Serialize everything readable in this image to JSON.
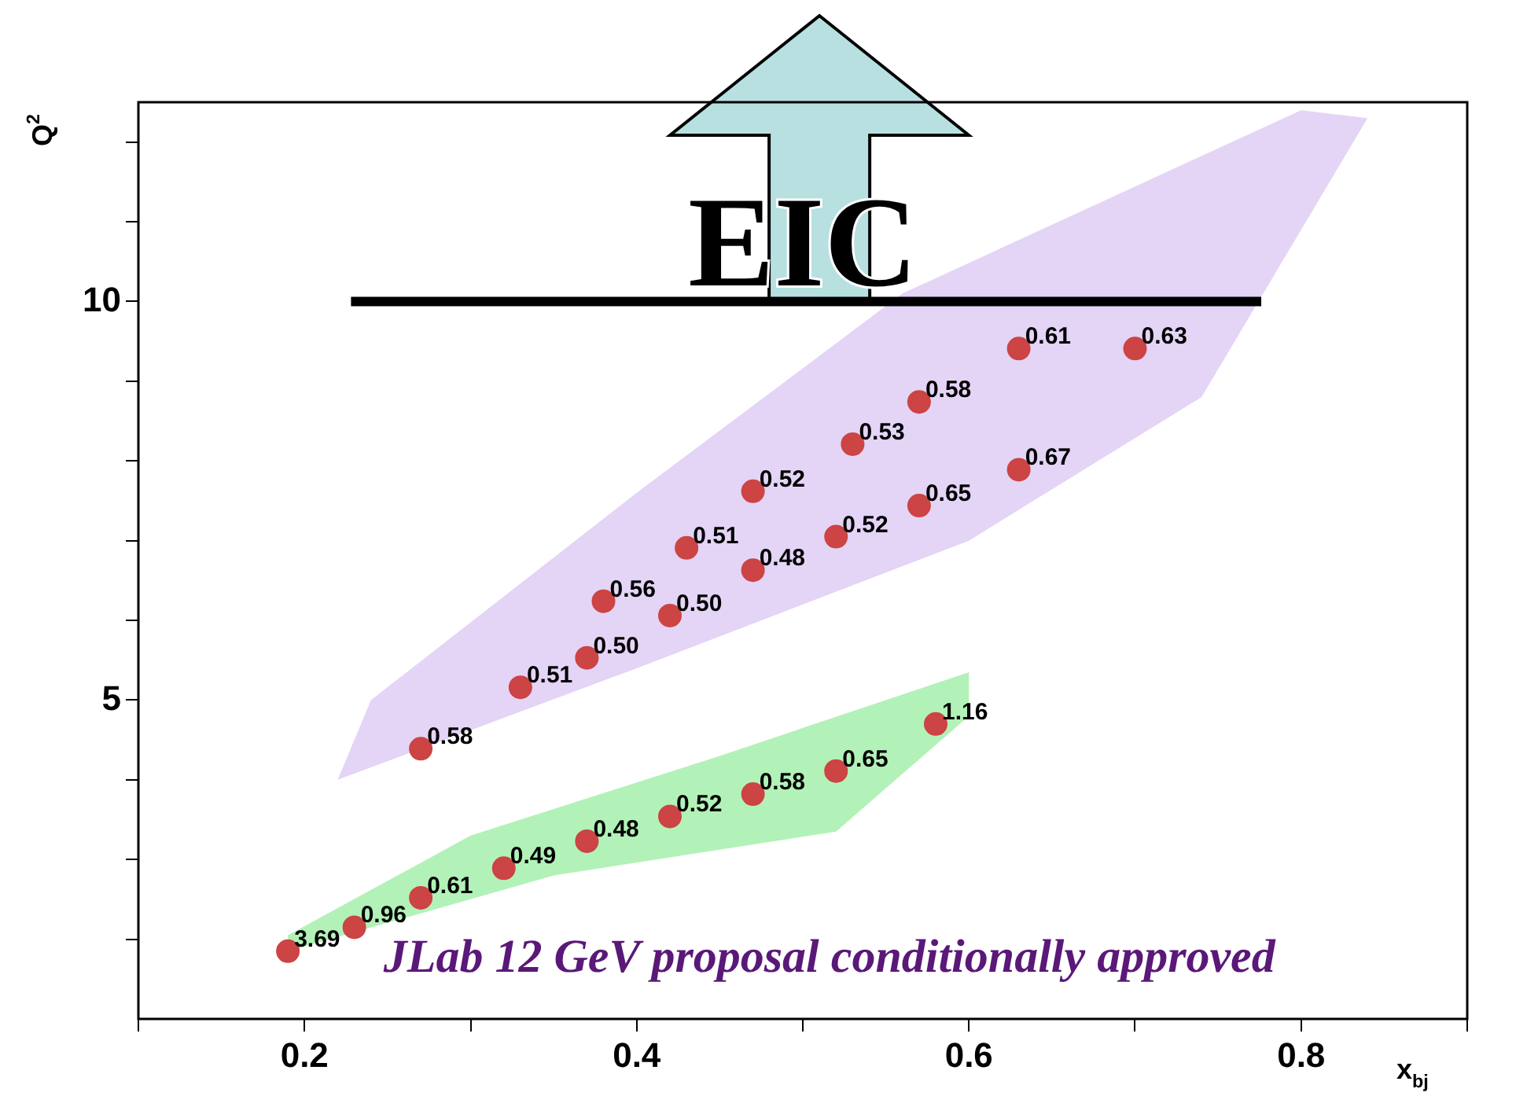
{
  "chart_data": {
    "type": "scatter",
    "xlabel": "x$_{bj}$",
    "ylabel": "Q$^{2}$",
    "xlim": [
      0.1,
      0.9
    ],
    "xticks": [
      {
        "value": 0.1,
        "label": null
      },
      0.2,
      {
        "value": 0.3,
        "label": null
      },
      0.4,
      {
        "value": 0.5,
        "label": null
      },
      0.6,
      {
        "value": 0.7,
        "label": null
      },
      0.8,
      {
        "value": 0.9,
        "label": null
      }
    ],
    "ylim": [
      1,
      12.5
    ],
    "yticks": [
      {
        "value": 2,
        "label": null
      },
      {
        "value": 3,
        "label": null
      },
      {
        "value": 4,
        "label": null
      },
      5,
      {
        "value": 6,
        "label": null
      },
      {
        "value": 7,
        "label": null
      },
      {
        "value": 8,
        "label": null
      },
      {
        "value": 9,
        "label": null
      },
      10,
      {
        "value": 11,
        "label": null
      },
      {
        "value": 12,
        "label": null
      }
    ],
    "grid": false,
    "legend": false,
    "marker": "circle",
    "series": [
      {
        "color": "#cc4444",
        "x": [
          0.19,
          0.23,
          0.27,
          0.32,
          0.37,
          0.42,
          0.47,
          0.52,
          0.58,
          0.27,
          0.33,
          0.37,
          0.38,
          0.42,
          0.43,
          0.47,
          0.47,
          0.52,
          0.53,
          0.57,
          0.57,
          0.63,
          0.63,
          0.7
        ],
        "values": [
          1.85,
          2.15,
          2.52,
          2.89,
          3.23,
          3.54,
          3.82,
          4.11,
          4.7,
          4.39,
          5.16,
          5.53,
          6.24,
          6.06,
          6.91,
          6.63,
          7.62,
          7.05,
          8.21,
          7.44,
          8.74,
          7.89,
          9.41,
          9.41
        ]
      }
    ],
    "ref_lines": [
      {
        "axis": "y",
        "value": 10,
        "label": "EIC",
        "color": "#000000"
      }
    ],
    "annotations": [
      "JLab 12 GeV proposal conditionally approved",
      {
        "text": "3.69",
        "x": 0.19,
        "y": 1.85
      },
      {
        "text": "0.96",
        "x": 0.23,
        "y": 2.15
      },
      {
        "text": "0.61",
        "x": 0.27,
        "y": 2.52
      },
      {
        "text": "0.49",
        "x": 0.32,
        "y": 2.89
      },
      {
        "text": "0.48",
        "x": 0.37,
        "y": 3.23
      },
      {
        "text": "0.52",
        "x": 0.42,
        "y": 3.54
      },
      {
        "text": "0.58",
        "x": 0.47,
        "y": 3.82
      },
      {
        "text": "0.65",
        "x": 0.52,
        "y": 4.11
      },
      {
        "text": "1.16",
        "x": 0.58,
        "y": 4.7
      },
      {
        "text": "0.58",
        "x": 0.27,
        "y": 4.39
      },
      {
        "text": "0.51",
        "x": 0.33,
        "y": 5.16
      },
      {
        "text": "0.50",
        "x": 0.37,
        "y": 5.53
      },
      {
        "text": "0.56",
        "x": 0.38,
        "y": 6.24
      },
      {
        "text": "0.50",
        "x": 0.42,
        "y": 6.06
      },
      {
        "text": "0.51",
        "x": 0.43,
        "y": 6.91
      },
      {
        "text": "0.48",
        "x": 0.47,
        "y": 6.63
      },
      {
        "text": "0.52",
        "x": 0.47,
        "y": 7.62
      },
      {
        "text": "0.52",
        "x": 0.52,
        "y": 7.05
      },
      {
        "text": "0.53",
        "x": 0.53,
        "y": 8.21
      },
      {
        "text": "0.65",
        "x": 0.57,
        "y": 7.44
      },
      {
        "text": "0.58",
        "x": 0.57,
        "y": 8.74
      },
      {
        "text": "0.67",
        "x": 0.63,
        "y": 7.89
      },
      {
        "text": "0.61",
        "x": 0.63,
        "y": 9.41
      },
      {
        "text": "0.63",
        "x": 0.7,
        "y": 9.41
      }
    ]
  }
}
